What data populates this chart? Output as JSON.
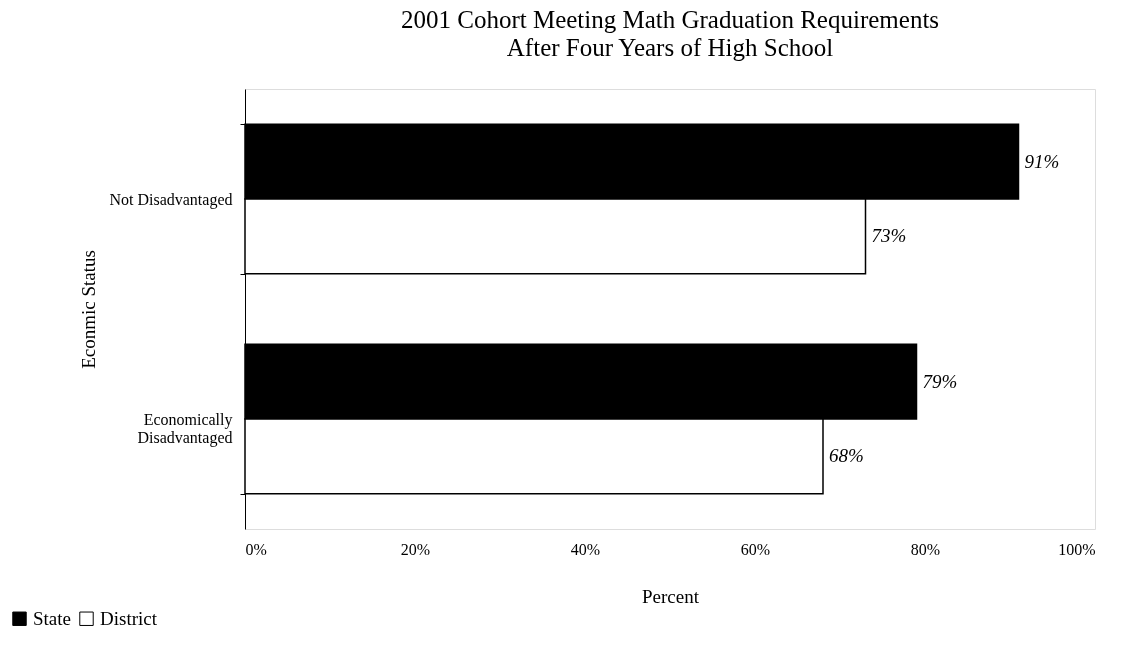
{
  "chart_data": {
    "type": "bar",
    "orientation": "horizontal",
    "title": "2001 Cohort Meeting Math Graduation Requirements",
    "subtitle": "After Four Years of High School",
    "xlabel": "Percent",
    "ylabel": "Econmic Status",
    "categories": [
      "Not Disadvantaged",
      "Economically Disadvantaged"
    ],
    "series": [
      {
        "name": "State",
        "color": "#000000",
        "values": [
          91,
          79
        ],
        "value_labels": [
          "91%",
          "79%"
        ]
      },
      {
        "name": "District",
        "color": "#ffffff",
        "values": [
          73,
          68
        ],
        "value_labels": [
          "73%",
          "68%"
        ]
      }
    ],
    "xlim": [
      0,
      100
    ],
    "xticks": [
      {
        "value": 0,
        "label": "0%"
      },
      {
        "value": 20,
        "label": "20%"
      },
      {
        "value": 40,
        "label": "40%"
      },
      {
        "value": 60,
        "label": "60%"
      },
      {
        "value": 80,
        "label": "80%"
      },
      {
        "value": 100,
        "label": "100%"
      }
    ],
    "grid": false,
    "legend": "bottom left"
  }
}
